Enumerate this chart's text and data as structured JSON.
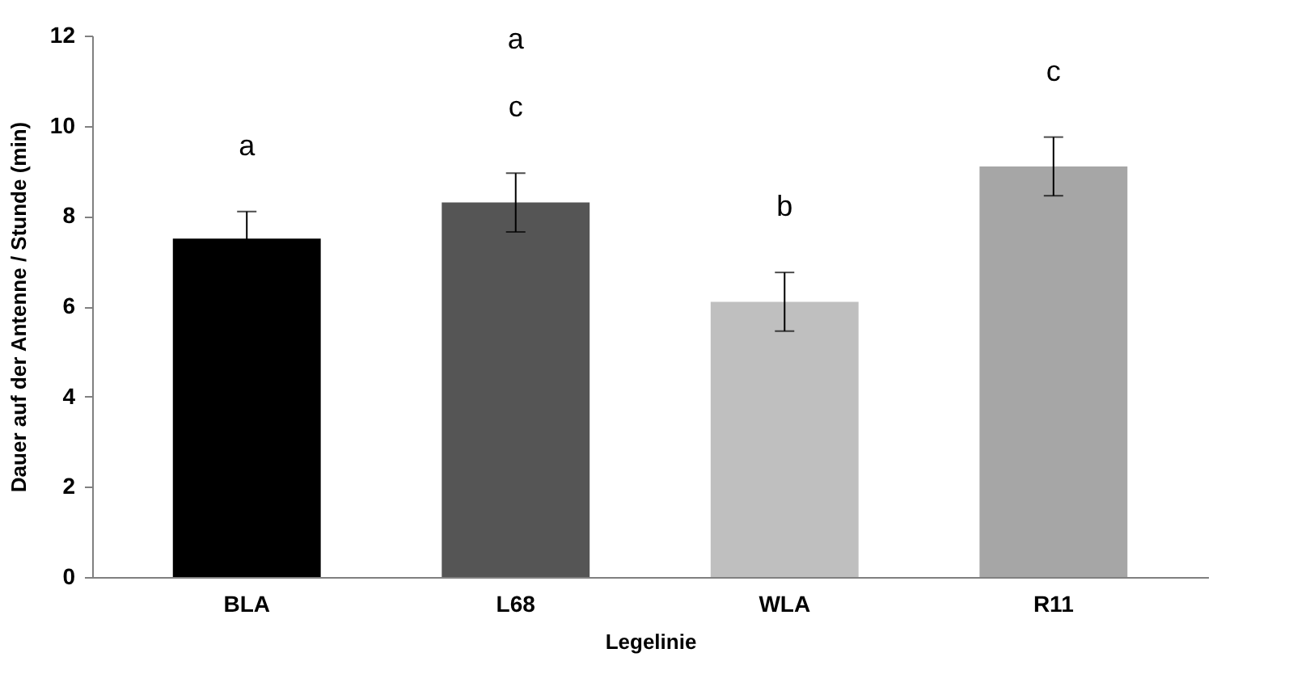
{
  "chart_data": {
    "type": "bar",
    "xlabel": "Legelinie",
    "ylabel": "Dauer auf der Antenne / Stunde (min)",
    "categories": [
      "BLA",
      "L68",
      "WLA",
      "R11"
    ],
    "values": [
      7.5,
      8.3,
      6.1,
      9.1
    ],
    "colors": [
      "#000000",
      "#555555",
      "#bfbfbf",
      "#a6a6a6"
    ],
    "errors": [
      0.6,
      0.65,
      0.65,
      0.65
    ],
    "ylim": [
      0,
      12
    ],
    "yticks": [
      0,
      2,
      4,
      6,
      8,
      10,
      12
    ],
    "grid": false,
    "value_labels": [
      "a",
      "c",
      "b",
      "c"
    ],
    "annotations": [
      "a"
    ]
  }
}
